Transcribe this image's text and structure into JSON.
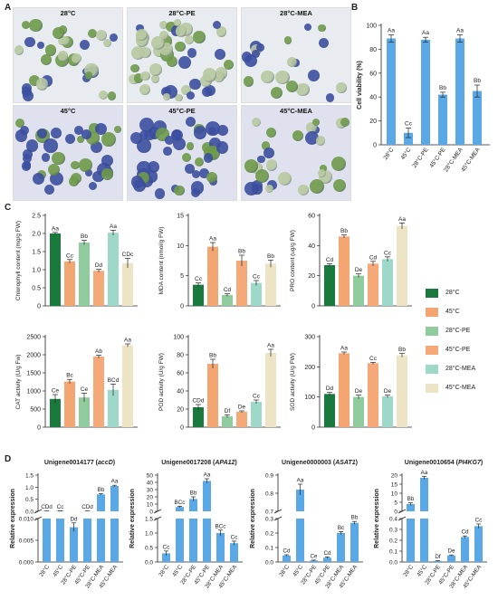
{
  "panelLetters": {
    "A": "A",
    "B": "B",
    "C": "C",
    "D": "D"
  },
  "micrographs": [
    {
      "label": "28°C"
    },
    {
      "label": "28°C-PE"
    },
    {
      "label": "28°C-MEA"
    },
    {
      "label": "45°C"
    },
    {
      "label": "45°C-PE"
    },
    {
      "label": "45°C-MEA"
    }
  ],
  "colors": {
    "c28": "#1a7a3e",
    "c45": "#f4a672",
    "c28pe": "#8fcb9c",
    "c45pe": "#f5a878",
    "c28mea": "#9ed8c8",
    "c45mea": "#ece4c4",
    "blue": "#5aa9e6",
    "cellGreen": "#6f9a4a",
    "cellBlue": "#3c4fa0",
    "cellPale": "#b8c8a0"
  },
  "legend": [
    {
      "label": "28°C",
      "color": "#1a7a3e"
    },
    {
      "label": "45°C",
      "color": "#f4a672"
    },
    {
      "label": "28°C-PE",
      "color": "#8fcb9c"
    },
    {
      "label": "45°C-PE",
      "color": "#f5a878"
    },
    {
      "label": "28°C-MEA",
      "color": "#9ed8c8"
    },
    {
      "label": "45°C-MEA",
      "color": "#ece4c4"
    }
  ],
  "chart_data": [
    {
      "id": "B",
      "type": "bar",
      "ylabel": "Cell viability  (%)",
      "ylim": [
        0,
        100
      ],
      "yticks": [
        0,
        20,
        40,
        60,
        80,
        100
      ],
      "categories": [
        "28°C",
        "45°C",
        "28°C-PE",
        "45°C-PE",
        "28°C-MEA",
        "45°C-MEA"
      ],
      "values": [
        89,
        10,
        88,
        42,
        89,
        45
      ],
      "errors": [
        3,
        4,
        2,
        2,
        3,
        5
      ],
      "letters": [
        "Aa",
        "Cc",
        "Aa",
        "Bb",
        "Aa",
        "Bb"
      ]
    },
    {
      "id": "C1",
      "type": "bar",
      "ylabel": "Chlorophyll content (mg/g FW)",
      "ylim": [
        0,
        2.5
      ],
      "yticks": [
        0,
        0.5,
        1.0,
        1.5,
        2.0,
        2.5
      ],
      "yticklabels": [
        "0",
        "0.5",
        "1.0",
        "1.5",
        "2.0",
        "2.5"
      ],
      "values": [
        2.0,
        1.23,
        1.75,
        0.97,
        2.02,
        1.18
      ],
      "errors": [
        0.03,
        0.05,
        0.06,
        0.04,
        0.07,
        0.13
      ],
      "letters": [
        "Aa",
        "Cc",
        "Bb",
        "Dd",
        "Aa",
        "CDc"
      ]
    },
    {
      "id": "C2",
      "type": "bar",
      "ylabel": "MDA content (nmol/g FW)",
      "ylim": [
        0,
        15
      ],
      "yticks": [
        0,
        5,
        10,
        15
      ],
      "values": [
        3.5,
        9.8,
        1.8,
        7.5,
        3.8,
        7.0
      ],
      "errors": [
        0.3,
        0.7,
        0.2,
        0.9,
        0.4,
        0.6
      ],
      "letters": [
        "Cc",
        "Aa",
        "Cd",
        "Bb",
        "Cc",
        "Bb"
      ]
    },
    {
      "id": "C3",
      "type": "bar",
      "ylabel": "PRO content (ug/g FW)",
      "ylim": [
        0,
        60
      ],
      "yticks": [
        0,
        20,
        40,
        60
      ],
      "values": [
        27,
        46,
        20,
        28,
        31,
        53
      ],
      "errors": [
        1,
        1,
        1.2,
        1.5,
        1.5,
        2
      ],
      "letters": [
        "Cd",
        "Bb",
        "De",
        "Cd",
        "Cc",
        "Aa"
      ]
    },
    {
      "id": "C4",
      "type": "bar",
      "ylabel": "CAT activity (U/g Fw)",
      "ylim": [
        0,
        2500
      ],
      "yticks": [
        0,
        500,
        1000,
        1500,
        2000,
        2500
      ],
      "values": [
        780,
        1260,
        820,
        1950,
        1030,
        2260
      ],
      "errors": [
        120,
        60,
        120,
        40,
        160,
        40
      ],
      "letters": [
        "Ce",
        "Bc",
        "Ce",
        "Ab",
        "BCd",
        "Aa"
      ]
    },
    {
      "id": "C5",
      "type": "bar",
      "ylabel": "POD activity (U/g FW)",
      "ylim": [
        0,
        100
      ],
      "yticks": [
        0,
        20,
        40,
        60,
        80,
        100
      ],
      "values": [
        22,
        70,
        12,
        17,
        28,
        82
      ],
      "errors": [
        3,
        5,
        1.5,
        1,
        2,
        4
      ],
      "letters": [
        "CDd",
        "Bb",
        "Df",
        "De",
        "Cc",
        "Aa"
      ]
    },
    {
      "id": "C6",
      "type": "bar",
      "ylabel": "SOD activity (U/g FW)",
      "ylim": [
        0,
        300
      ],
      "yticks": [
        0,
        100,
        200,
        300
      ],
      "values": [
        110,
        245,
        100,
        212,
        102,
        238
      ],
      "errors": [
        5,
        4,
        6,
        3,
        4,
        6
      ],
      "letters": [
        "Dd",
        "Aa",
        "De",
        "Cc",
        "De",
        "Bb"
      ]
    },
    {
      "id": "D1",
      "type": "bar",
      "title": "Unigene0014177 (accD)",
      "ylabel": "Relative expression",
      "categories": [
        "28°C",
        "45°C",
        "28°C-PE",
        "45°C-PE",
        "28°C-MEA",
        "45°C-MEA"
      ],
      "values": [
        0.012,
        0.02,
        0.008,
        0.012,
        0.7,
        1.05
      ],
      "errors": [
        0.001,
        0.001,
        0.001,
        0.001,
        0.03,
        0.03
      ],
      "letters": [
        "CDd",
        "Cc",
        "Dd",
        "CDd",
        "Bb",
        "Aa"
      ],
      "lowerTicks": [
        "0.000",
        "0.005",
        "0.010"
      ],
      "upperTicks": [
        "0.0",
        "0.5",
        "1.0",
        "1.5"
      ]
    },
    {
      "id": "D2",
      "type": "bar",
      "title": "Unigene0017208 (APA12)",
      "ylabel": "Relative expression",
      "categories": [
        "28°C",
        "45°C",
        "28°C-PE",
        "45°C-PE",
        "28°C-MEA",
        "45°C-MEA"
      ],
      "values": [
        0.3,
        6,
        17,
        42,
        1,
        0.65
      ],
      "errors": [
        0.08,
        1,
        3,
        3,
        0.1,
        0.07
      ],
      "letters": [
        "Cc",
        "BCc",
        "Bb",
        "Aa",
        "BCc",
        "Cc"
      ],
      "lowerTicks": [
        "0.0",
        "0.5",
        "1.0",
        "1.5"
      ],
      "upperTicks": [
        "0",
        "10",
        "20",
        "30",
        "40",
        "50"
      ]
    },
    {
      "id": "D3",
      "type": "bar",
      "title": "Unigene0000003 (ASAT1)",
      "ylabel": "Relative expression",
      "categories": [
        "28°C",
        "45°C",
        "28°C-PE",
        "45°C-PE",
        "28°C-MEA",
        "45°C-MEA"
      ],
      "values": [
        0.045,
        0.82,
        0.01,
        0.03,
        0.2,
        0.27
      ],
      "errors": [
        0.005,
        0.03,
        0.003,
        0.005,
        0.01,
        0.01
      ],
      "letters": [
        "Cd",
        "Aa",
        "Ce",
        "Cd",
        "Bc",
        "Bb"
      ],
      "lowerTicks": [
        "0.0",
        "0.1",
        "0.2",
        "0.3"
      ],
      "upperTicks": [
        "0.7",
        "0.8",
        "0.9"
      ]
    },
    {
      "id": "D4",
      "type": "bar",
      "title": "Unigene0010654 (PI4KG7)",
      "ylabel": "Relative expression",
      "categories": [
        "28°C",
        "45°C",
        "28°C-PE",
        "45°C-PE",
        "28°C-MEA",
        "45°C-MEA"
      ],
      "values": [
        4,
        18.5,
        0.01,
        0.06,
        0.23,
        0.33
      ],
      "errors": [
        0.7,
        0.8,
        0.003,
        0.005,
        0.01,
        0.02
      ],
      "letters": [
        "Bb",
        "Aa",
        "Df",
        "De",
        "Cd",
        "Cc"
      ],
      "lowerTicks": [
        "0.0",
        "0.1",
        "0.2",
        "0.3",
        "0.4"
      ],
      "upperTicks": [
        "0",
        "5",
        "10",
        "15",
        "20"
      ]
    }
  ]
}
